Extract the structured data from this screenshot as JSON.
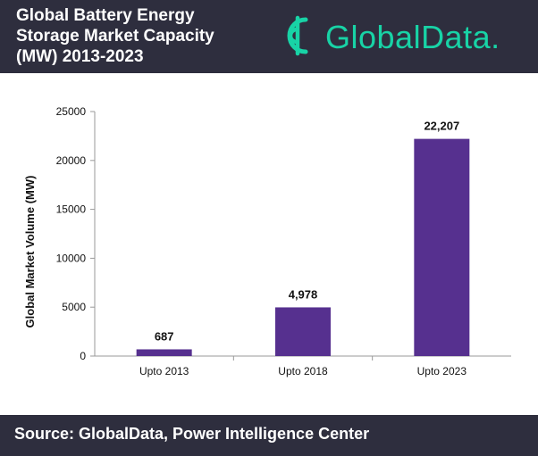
{
  "header": {
    "title_lines": [
      "Global Battery Energy",
      "Storage Market Capacity",
      "(MW) 2013-2023"
    ],
    "logo_text": "GlobalData.",
    "logo_icon": "globaldata-logo-icon",
    "background": "#2e2e3e",
    "logo_color": "#18d3a6"
  },
  "chart_data": {
    "type": "bar",
    "categories": [
      "Upto 2013",
      "Upto 2018",
      "Upto 2023"
    ],
    "values": [
      687,
      4978,
      22207
    ],
    "data_labels": [
      "687",
      "4,978",
      "22,207"
    ],
    "ylabel": "Global Market Volume (MW)",
    "xlabel": "",
    "ylim": [
      0,
      25000
    ],
    "yticks": [
      0,
      5000,
      10000,
      15000,
      20000,
      25000
    ],
    "ytick_labels": [
      "0",
      "5000",
      "10000",
      "15000",
      "20000",
      "25000"
    ],
    "bar_color": "#56308f",
    "grid": false,
    "legend": "none"
  },
  "footer": {
    "source": "Source: GlobalData, Power Intelligence Center"
  }
}
